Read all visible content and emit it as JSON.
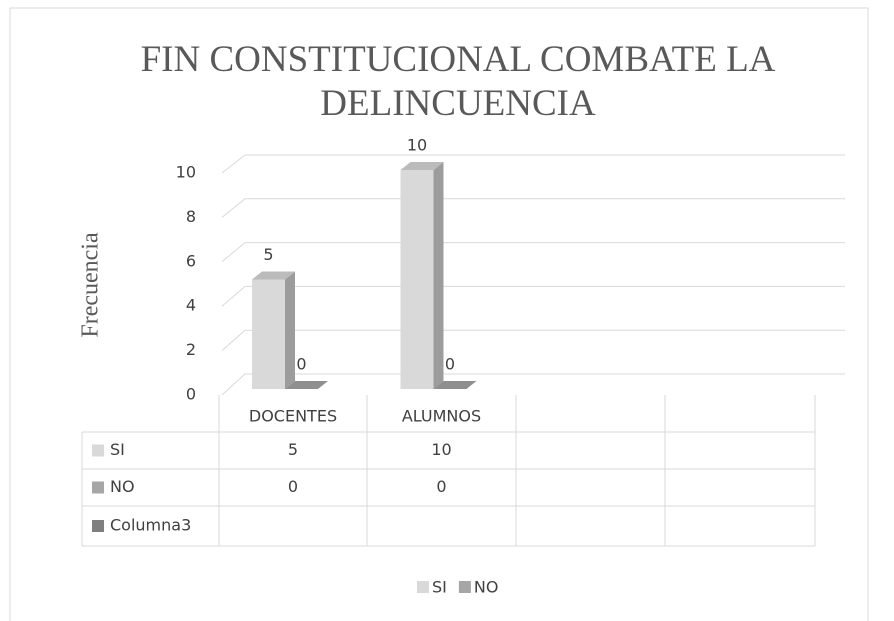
{
  "chart_data": {
    "type": "bar3d",
    "title": "FIN CONSTITUCIONAL COMBATE LA DELINCUENCIA",
    "y_label": "Frecuencia",
    "categories": [
      "DOCENTES",
      "ALUMNOS",
      null,
      null
    ],
    "series": [
      {
        "name": "SI",
        "color": "#d9d9d9",
        "values": [
          5,
          10,
          null,
          null
        ]
      },
      {
        "name": "NO",
        "color": "#a6a6a6",
        "values": [
          0,
          0,
          null,
          null
        ]
      },
      {
        "name": "Columna3",
        "color": "#7f7f7f",
        "values": [
          null,
          null,
          null,
          null
        ],
        "in_legend": false
      }
    ],
    "ylim": [
      0,
      10
    ],
    "yticks": [
      0,
      2,
      4,
      6,
      8,
      10
    ],
    "grid": true,
    "data_table": true,
    "legend": "bottom"
  }
}
